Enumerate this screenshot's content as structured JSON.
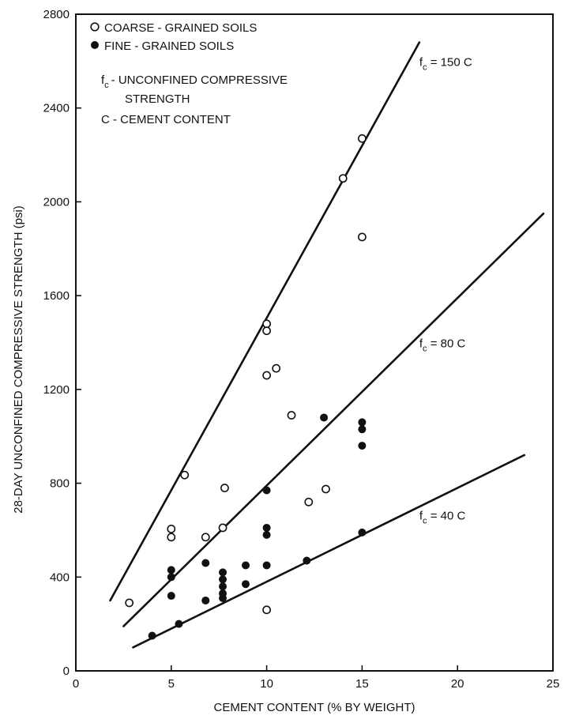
{
  "chart_data": {
    "type": "scatter",
    "xlabel": "CEMENT CONTENT (% BY WEIGHT)",
    "ylabel": "28-DAY UNCONFINED COMPRESSIVE STRENGTH (psi)",
    "xlim": [
      0,
      25
    ],
    "ylim": [
      0,
      2800
    ],
    "x_ticks": [
      0,
      5,
      10,
      15,
      20,
      25
    ],
    "y_ticks": [
      0,
      400,
      800,
      1200,
      1600,
      2000,
      2400,
      2800
    ],
    "grid": false,
    "legend_position": "top-left",
    "legend": {
      "coarse": "COARSE - GRAINED SOILS",
      "fine": "FINE - GRAINED SOILS",
      "def_fc_symbol": "f",
      "def_fc_sub": "c",
      "def_fc_text_line1": "- UNCONFINED COMPRESSIVE",
      "def_fc_text_line2": "STRENGTH",
      "def_c": "C - CEMENT CONTENT"
    },
    "series": [
      {
        "name": "COARSE - GRAINED SOILS",
        "marker": "open-circle",
        "points": [
          [
            2.8,
            290
          ],
          [
            5.0,
            605
          ],
          [
            5.0,
            570
          ],
          [
            5.7,
            835
          ],
          [
            6.8,
            570
          ],
          [
            7.7,
            610
          ],
          [
            7.8,
            780
          ],
          [
            10.0,
            1480
          ],
          [
            10.0,
            1450
          ],
          [
            10.0,
            1260
          ],
          [
            10.0,
            260
          ],
          [
            10.5,
            1290
          ],
          [
            11.3,
            1090
          ],
          [
            12.2,
            720
          ],
          [
            13.1,
            775
          ],
          [
            14.0,
            2100
          ],
          [
            15.0,
            2270
          ],
          [
            15.0,
            1850
          ]
        ]
      },
      {
        "name": "FINE - GRAINED SOILS",
        "marker": "filled-circle",
        "points": [
          [
            4.0,
            150
          ],
          [
            5.0,
            430
          ],
          [
            5.0,
            400
          ],
          [
            5.0,
            320
          ],
          [
            5.4,
            200
          ],
          [
            6.8,
            460
          ],
          [
            6.8,
            300
          ],
          [
            7.7,
            420
          ],
          [
            7.7,
            390
          ],
          [
            7.7,
            360
          ],
          [
            7.7,
            330
          ],
          [
            7.7,
            310
          ],
          [
            8.9,
            450
          ],
          [
            8.9,
            370
          ],
          [
            10.0,
            770
          ],
          [
            10.0,
            610
          ],
          [
            10.0,
            580
          ],
          [
            10.0,
            450
          ],
          [
            12.1,
            470
          ],
          [
            13.0,
            1080
          ],
          [
            15.0,
            1060
          ],
          [
            15.0,
            1030
          ],
          [
            15.0,
            960
          ],
          [
            15.0,
            590
          ]
        ]
      }
    ],
    "lines": [
      {
        "label_main": "f",
        "label_sub": "c",
        "label_rest": " = 150 C",
        "x": [
          1.8,
          18.0
        ],
        "y": [
          300,
          2680
        ]
      },
      {
        "label_main": "f",
        "label_sub": "c",
        "label_rest": " = 80 C",
        "x": [
          2.5,
          24.5
        ],
        "y": [
          190,
          1950
        ]
      },
      {
        "label_main": "f",
        "label_sub": "c",
        "label_rest": " = 40 C",
        "x": [
          3.0,
          23.5
        ],
        "y": [
          100,
          920
        ]
      }
    ],
    "line_label_positions": [
      [
        18.0,
        2580
      ],
      [
        18.0,
        1380
      ],
      [
        18.0,
        645
      ]
    ]
  }
}
